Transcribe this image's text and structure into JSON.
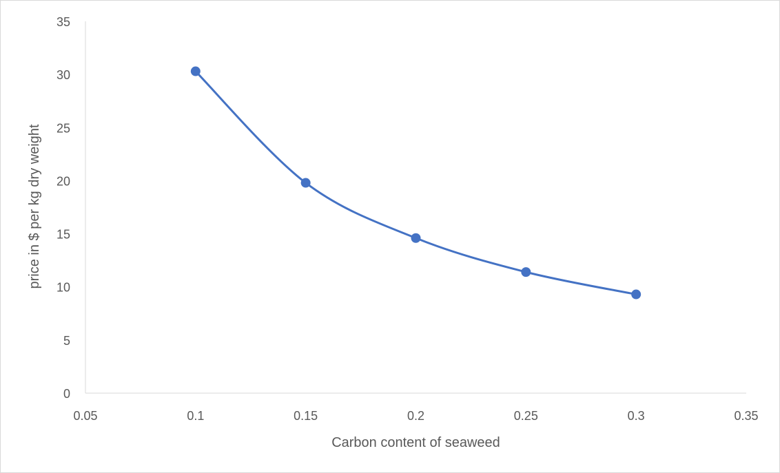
{
  "chart_data": {
    "type": "line",
    "smooth": true,
    "markers": true,
    "title": "",
    "xlabel": "Carbon content of seaweed",
    "ylabel": "price in $ per kg dry weight",
    "xlim": [
      0.05,
      0.35
    ],
    "ylim": [
      0,
      35
    ],
    "x_ticks": [
      0.05,
      0.1,
      0.15,
      0.2,
      0.25,
      0.3,
      0.35
    ],
    "x_tick_labels": [
      "0.05",
      "0.1",
      "0.15",
      "0.2",
      "0.25",
      "0.3",
      "0.35"
    ],
    "y_ticks": [
      0,
      5,
      10,
      15,
      20,
      25,
      30,
      35
    ],
    "y_tick_labels": [
      "0",
      "5",
      "10",
      "15",
      "20",
      "25",
      "30",
      "35"
    ],
    "grid": false,
    "legend": "none",
    "series": [
      {
        "color": "#4472c4",
        "x": [
          0.1,
          0.15,
          0.2,
          0.25,
          0.3
        ],
        "y": [
          30.3,
          19.8,
          14.6,
          11.4,
          9.3
        ]
      }
    ]
  }
}
